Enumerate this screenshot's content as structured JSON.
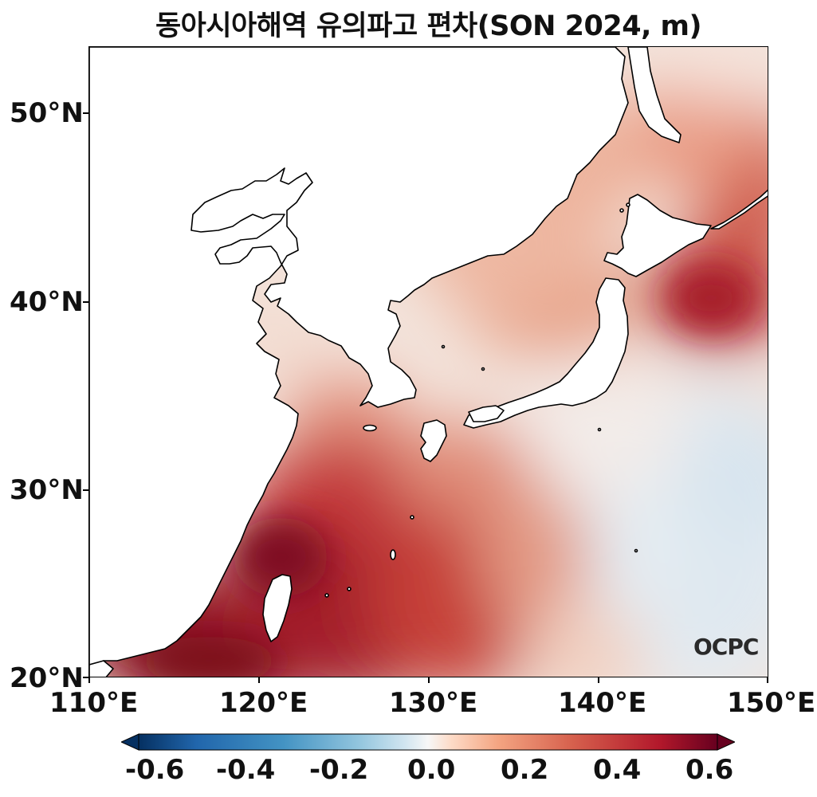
{
  "title": "동아시아해역 유의파고 편차(SON 2024, m)",
  "axes": {
    "lat_labels": [
      "50°N",
      "40°N",
      "30°N",
      "20°N"
    ],
    "lon_labels": [
      "110°E",
      "120°E",
      "130°E",
      "140°E",
      "150°E"
    ],
    "lon_range": [
      110,
      150
    ],
    "lat_range": [
      20,
      53.5
    ]
  },
  "colorbar": {
    "colormap": "RdBu_r",
    "range": [
      -0.6,
      0.6
    ],
    "tick_labels": [
      "-0.6",
      "-0.4",
      "-0.2",
      "0.0",
      "0.2",
      "0.4",
      "0.6"
    ],
    "extend": "both"
  },
  "logo_text": "OCPC",
  "colors": {
    "deep_red": "#8b0d1e",
    "mid_red": "#c8463e",
    "light_red": "#f0b29a",
    "near_zero": "#f7f1ee",
    "light_blue": "#dbe7f0",
    "land": "#ffffff"
  }
}
